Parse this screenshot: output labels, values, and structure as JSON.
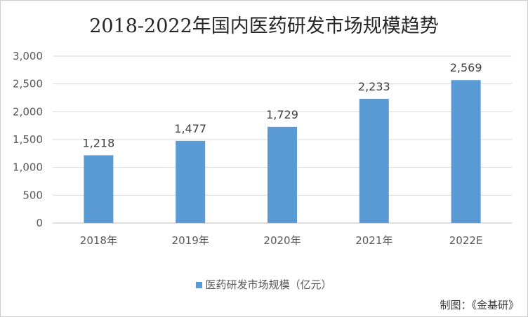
{
  "chart_data": {
    "type": "bar",
    "title": "2018-2022年国内医药研发市场规模趋势",
    "categories": [
      "2018年",
      "2019年",
      "2020年",
      "2021年",
      "2022E"
    ],
    "series": [
      {
        "name": "医药研发市场规模（亿元）",
        "values": [
          1218,
          1477,
          1729,
          2233,
          2569
        ],
        "color": "#5b9bd5"
      }
    ],
    "data_labels": [
      "1,218",
      "1,477",
      "1,729",
      "2,233",
      "2,569"
    ],
    "ylim": [
      0,
      3000
    ],
    "yticks": [
      0,
      500,
      1000,
      1500,
      2000,
      2500,
      3000
    ],
    "ytick_labels": [
      "0",
      "500",
      "1,000",
      "1,500",
      "2,000",
      "2,500",
      "3,000"
    ],
    "grid": true,
    "legend_position": "bottom"
  },
  "source_text": "制图：《金基研》"
}
